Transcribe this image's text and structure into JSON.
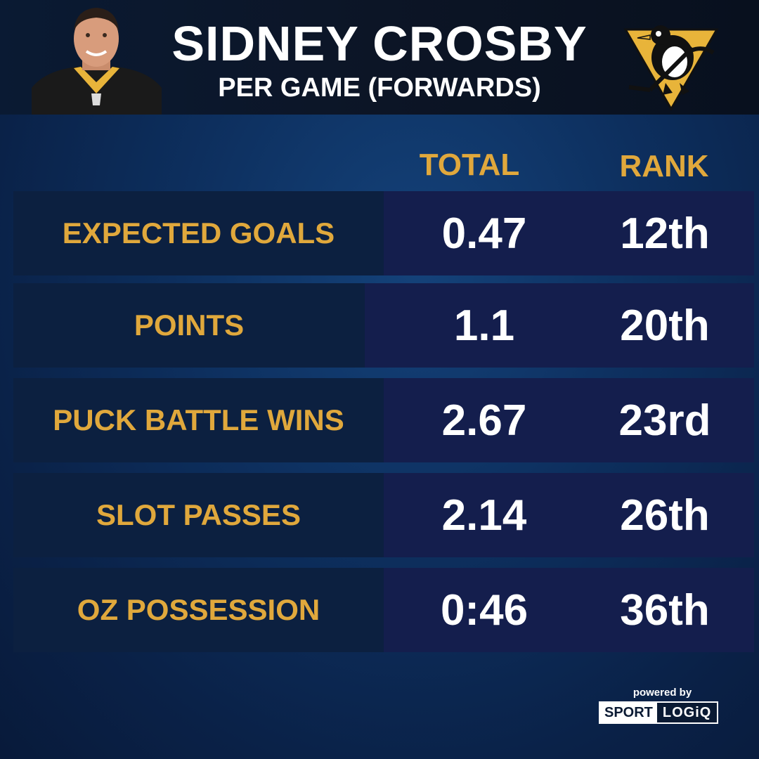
{
  "header": {
    "title": "SIDNEY CROSBY",
    "subtitle": "PER GAME (FORWARDS)"
  },
  "columns": {
    "total": "TOTAL",
    "rank": "RANK"
  },
  "rows": [
    {
      "label": "EXPECTED GOALS",
      "total": "0.47",
      "rank": "12th"
    },
    {
      "label": "POINTS",
      "total": "1.1",
      "rank": "20th"
    },
    {
      "label": "PUCK BATTLE WINS",
      "total": "2.67",
      "rank": "23rd"
    },
    {
      "label": "SLOT PASSES",
      "total": "2.14",
      "rank": "26th"
    },
    {
      "label": "OZ POSSESSION",
      "total": "0:46",
      "rank": "36th"
    }
  ],
  "footer": {
    "powered_by": "powered by",
    "brand_left": "SPORT",
    "brand_right": "LOGiQ"
  },
  "colors": {
    "accent_gold": "#e0a83c",
    "background_blue": "#0d2f5e",
    "header_dark": "#0c1526"
  },
  "icons": {
    "player_photo": "player-photo",
    "team_logo": "penguins-logo"
  }
}
